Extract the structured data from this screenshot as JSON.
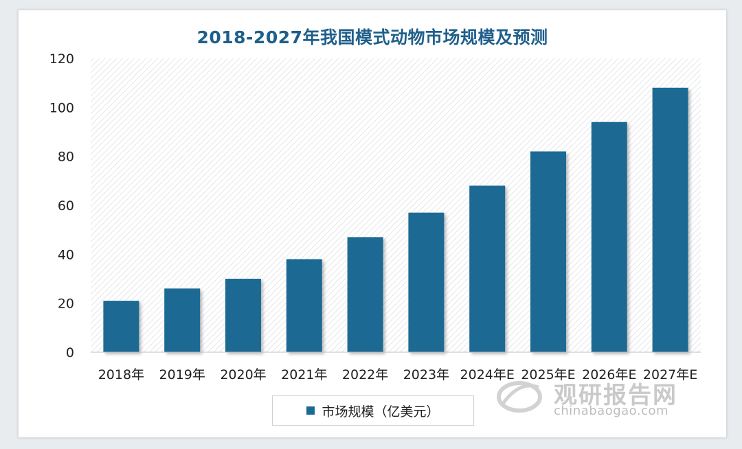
{
  "chart_data": {
    "type": "bar",
    "title": "2018-2027年我国模式动物市场规模及预测",
    "categories": [
      "2018年",
      "2019年",
      "2020年",
      "2021年",
      "2022年",
      "2023年",
      "2024年E",
      "2025年E",
      "2026年E",
      "2027年E"
    ],
    "series": [
      {
        "name": "市场规模（亿美元）",
        "values": [
          21,
          26,
          30,
          38,
          47,
          57,
          68,
          82,
          94,
          108
        ]
      }
    ],
    "ylim": [
      0,
      120
    ],
    "yticks": [
      "0",
      "20",
      "40",
      "60",
      "80",
      "100",
      "120"
    ],
    "grid": "hatched plot background",
    "legend_position": "bottom",
    "bar_color": "#1b6a93"
  },
  "watermark": {
    "cn": "观研报告网",
    "en": "chinabaogao.com"
  }
}
